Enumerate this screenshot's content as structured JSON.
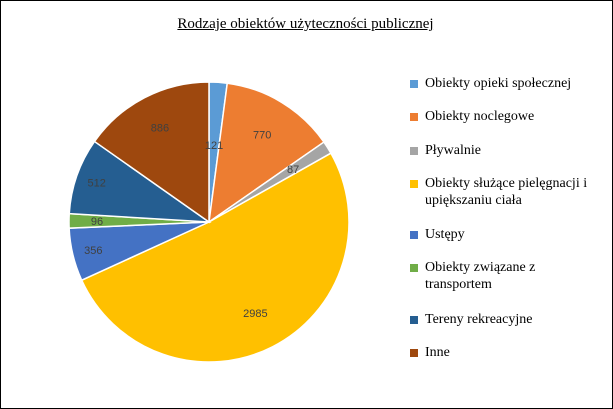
{
  "chart_data": {
    "type": "pie",
    "title": "Rodzaje obiektów użyteczności publicznej",
    "legend_position": "right",
    "slices": [
      {
        "name": "Obiekty opieki społecznej",
        "value": 121,
        "color": "#5B9BD5"
      },
      {
        "name": "Obiekty noclegowe",
        "value": 770,
        "color": "#ED7D31"
      },
      {
        "name": "Pływalnie",
        "value": 87,
        "color": "#A5A5A5"
      },
      {
        "name": "Obiekty służące pielęgnacji i upiększaniu ciała",
        "value": 2985,
        "color": "#FFC000"
      },
      {
        "name": "Ustępy",
        "value": 356,
        "color": "#4472C4"
      },
      {
        "name": "Obiekty związane z transportem",
        "value": 96,
        "color": "#70AD47"
      },
      {
        "name": "Tereny rekreacyjne",
        "value": 512,
        "color": "#255E91"
      },
      {
        "name": "Inne",
        "value": 886,
        "color": "#9E480E"
      }
    ]
  }
}
